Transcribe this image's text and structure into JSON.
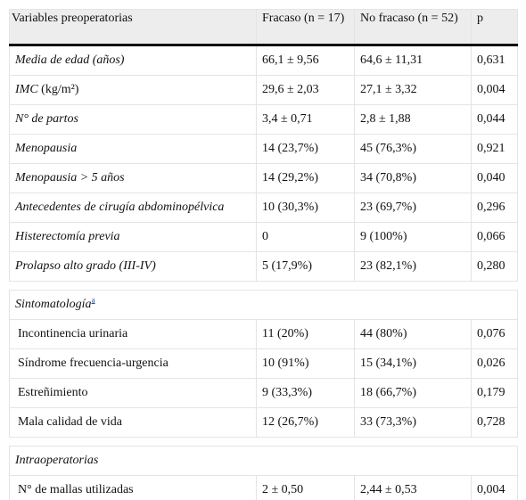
{
  "table": {
    "header": [
      "Variables preoperatorias",
      "Fracaso (n = 17)",
      "No fracaso (n = 52)",
      "p"
    ],
    "groups": [
      {
        "rows": [
          {
            "label": "Media de edad (años)",
            "cells": [
              "66,1 ± 9,56",
              "64,6 ± 11,31",
              "0,631"
            ]
          },
          {
            "label": "IMC",
            "unit": "(kg/m²)",
            "cells": [
              "29,6 ± 2,03",
              "27,1 ± 3,32",
              "0,004"
            ]
          },
          {
            "label": "N° de partos",
            "cells": [
              "3,4 ± 0,71",
              "2,8 ± 1,88",
              "0,044"
            ]
          },
          {
            "label": "Menopausia",
            "cells": [
              "14 (23,7%)",
              "45 (76,3%)",
              "0,921"
            ]
          },
          {
            "label": "Menopausia > 5 años",
            "cells": [
              "14 (29,2%)",
              "34 (70,8%)",
              "0,040"
            ]
          },
          {
            "label": "Antecedentes de cirugía abdominopélvica",
            "cells": [
              "10 (30,3%)",
              "23 (69,7%)",
              "0,296"
            ]
          },
          {
            "label": "Histerectomía previa",
            "cells": [
              "0",
              "9 (100%)",
              "0,066"
            ]
          },
          {
            "label": "Prolapso alto grado (III-IV)",
            "cells": [
              "5 (17,9%)",
              "23 (82,1%)",
              "0,280"
            ]
          }
        ]
      },
      {
        "title": "Sintomatología",
        "note": "a",
        "rows": [
          {
            "label": "Incontinencia urinaria",
            "cells": [
              "11 (20%)",
              "44 (80%)",
              "0,076"
            ]
          },
          {
            "label": "Síndrome frecuencia-urgencia",
            "cells": [
              "10 (91%)",
              "15 (34,1%)",
              "0,026"
            ]
          },
          {
            "label": "Estreñimiento",
            "cells": [
              "9 (33,3%)",
              "18 (66,7%)",
              "0,179"
            ]
          },
          {
            "label": "Mala calidad de vida",
            "cells": [
              "12 (26,7%)",
              "33 (73,3%)",
              "0,728"
            ]
          }
        ]
      },
      {
        "title": "Intraoperatorias",
        "rows": [
          {
            "label": "N° de mallas utilizadas",
            "cells": [
              "2 ± 0,50",
              "2,44 ± 0,53",
              "0,004"
            ]
          }
        ]
      }
    ]
  }
}
